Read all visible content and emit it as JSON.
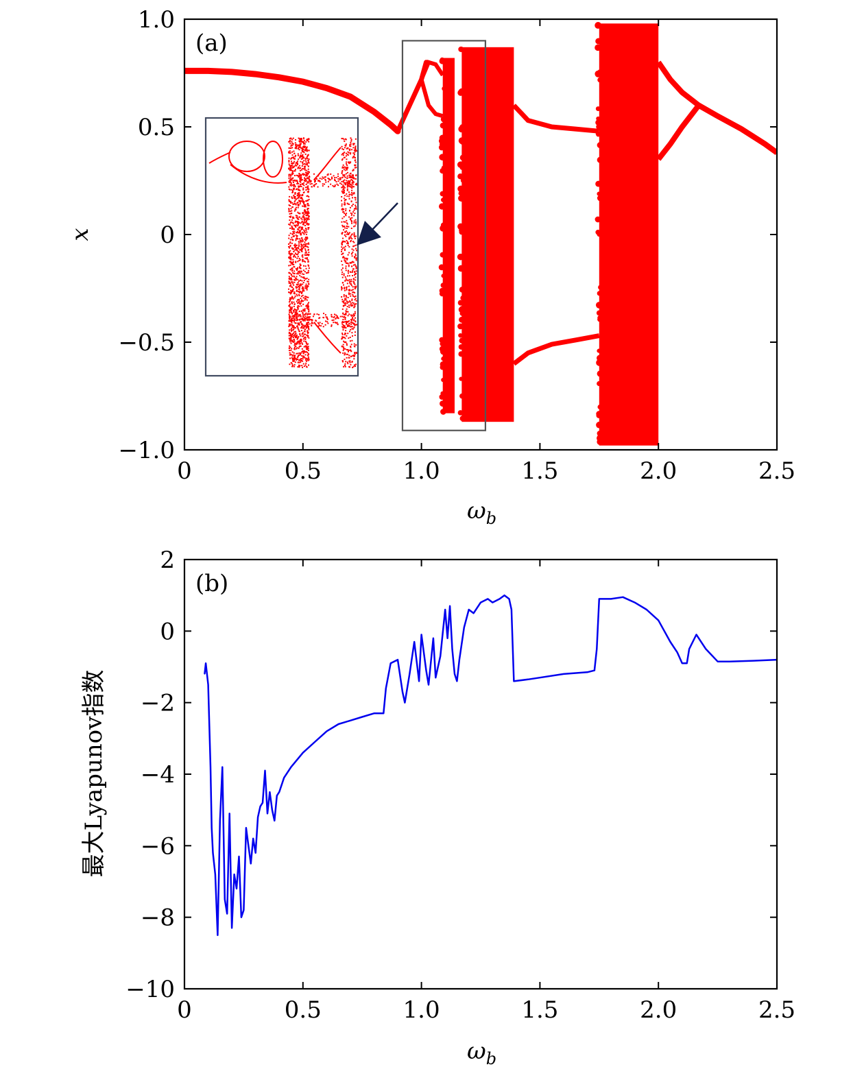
{
  "colors": {
    "bifurcation": "#ff0000",
    "lyapunov": "#0000ee",
    "frame": "#000000",
    "highlight_box": "#555555",
    "inset_box": "#404a60",
    "arrow": "#14204a"
  },
  "chart_data": [
    {
      "type": "scatter",
      "panel_label": "(a)",
      "xlabel_main": "ω",
      "xlabel_sub": "b",
      "ylabel": "x",
      "xlim": [
        0,
        2.5
      ],
      "ylim": [
        -1.0,
        1.0
      ],
      "x_ticks": [
        0,
        0.5,
        1.0,
        1.5,
        2.0,
        2.5
      ],
      "x_tick_labels": [
        "0",
        "0.5",
        "1.0",
        "1.5",
        "2.0",
        "2.5"
      ],
      "y_ticks": [
        1.0,
        0.5,
        0,
        -0.5,
        -1.0
      ],
      "y_tick_labels": [
        "1.0",
        "0.5",
        "0",
        "−0.5",
        "−1.0"
      ],
      "period1_branch": {
        "x": [
          0,
          0.1,
          0.2,
          0.3,
          0.4,
          0.5,
          0.6,
          0.7,
          0.8,
          0.87,
          0.9
        ],
        "y": [
          0.76,
          0.76,
          0.755,
          0.745,
          0.73,
          0.71,
          0.68,
          0.64,
          0.57,
          0.51,
          0.48
        ]
      },
      "branch_rise": {
        "x": [
          0.9,
          0.95,
          1.0,
          1.02
        ],
        "y": [
          0.48,
          0.6,
          0.72,
          0.8
        ]
      },
      "period2_bubble": {
        "x": [
          1.0,
          1.03,
          1.06,
          1.09
        ],
        "upper": [
          0.72,
          0.8,
          0.79,
          0.74
        ],
        "lower": [
          0.72,
          0.6,
          0.56,
          0.55
        ]
      },
      "chaotic_bands": [
        {
          "x_range": [
            1.09,
            1.14
          ],
          "y_range": [
            -0.83,
            0.82
          ]
        },
        {
          "x_range": [
            1.17,
            1.39
          ],
          "y_range": [
            -0.87,
            0.87
          ]
        },
        {
          "x_range": [
            1.75,
            2.0
          ],
          "y_range": [
            -0.98,
            0.98
          ]
        }
      ],
      "period2_window": {
        "x": [
          1.39,
          1.45,
          1.55,
          1.65,
          1.75
        ],
        "upper": [
          0.6,
          0.53,
          0.5,
          0.49,
          0.48
        ],
        "lower": [
          -0.6,
          -0.55,
          -0.51,
          -0.49,
          -0.47
        ]
      },
      "reverse_branch": {
        "x": [
          2.0,
          2.05,
          2.1,
          2.17,
          2.25,
          2.35,
          2.45,
          2.5
        ],
        "upper": [
          0.8,
          0.72,
          0.66,
          0.6,
          0.55,
          0.49,
          0.42,
          0.38
        ],
        "lower": [
          0.35,
          0.42,
          0.5,
          0.6,
          0.55,
          0.49,
          0.42,
          0.38
        ]
      },
      "highlight_box_data": {
        "x_range": [
          0.92,
          1.27
        ],
        "y_range": [
          -0.91,
          0.9
        ]
      }
    },
    {
      "type": "line",
      "panel_label": "(b)",
      "xlabel_main": "ω",
      "xlabel_sub": "b",
      "ylabel": "最大Lyapunov指数",
      "xlim": [
        0,
        2.5
      ],
      "ylim": [
        -10,
        2
      ],
      "x_ticks": [
        0,
        0.5,
        1.0,
        1.5,
        2.0,
        2.5
      ],
      "x_tick_labels": [
        "0",
        "0.5",
        "1.0",
        "1.5",
        "2.0",
        "2.5"
      ],
      "y_ticks": [
        2,
        0,
        -2,
        -4,
        -6,
        -8,
        -10
      ],
      "y_tick_labels": [
        "2",
        "0",
        "−2",
        "−4",
        "−6",
        "−8",
        "−10"
      ],
      "x": [
        0.085,
        0.09,
        0.1,
        0.11,
        0.115,
        0.12,
        0.13,
        0.14,
        0.15,
        0.16,
        0.17,
        0.18,
        0.19,
        0.2,
        0.21,
        0.22,
        0.23,
        0.24,
        0.25,
        0.26,
        0.27,
        0.28,
        0.29,
        0.3,
        0.31,
        0.32,
        0.33,
        0.34,
        0.35,
        0.36,
        0.37,
        0.38,
        0.39,
        0.4,
        0.41,
        0.42,
        0.45,
        0.5,
        0.55,
        0.6,
        0.65,
        0.7,
        0.75,
        0.8,
        0.84,
        0.85,
        0.87,
        0.9,
        0.92,
        0.93,
        0.95,
        0.97,
        0.99,
        1.0,
        1.02,
        1.03,
        1.05,
        1.06,
        1.08,
        1.1,
        1.11,
        1.12,
        1.13,
        1.14,
        1.15,
        1.16,
        1.18,
        1.2,
        1.22,
        1.25,
        1.28,
        1.3,
        1.33,
        1.35,
        1.37,
        1.38,
        1.39,
        1.45,
        1.5,
        1.6,
        1.7,
        1.73,
        1.74,
        1.75,
        1.8,
        1.85,
        1.9,
        1.95,
        2.0,
        2.05,
        2.08,
        2.1,
        2.12,
        2.13,
        2.16,
        2.2,
        2.25,
        2.3,
        2.4,
        2.5
      ],
      "y": [
        -1.2,
        -0.9,
        -1.5,
        -3.8,
        -5.5,
        -6.2,
        -6.8,
        -8.5,
        -5.3,
        -3.8,
        -7.5,
        -7.9,
        -5.1,
        -8.3,
        -6.8,
        -7.2,
        -6.3,
        -8.0,
        -7.8,
        -5.5,
        -6.0,
        -6.5,
        -5.8,
        -6.2,
        -5.2,
        -4.9,
        -4.8,
        -3.9,
        -5.1,
        -4.5,
        -5.0,
        -5.3,
        -4.6,
        -4.5,
        -4.3,
        -4.1,
        -3.8,
        -3.4,
        -3.1,
        -2.8,
        -2.6,
        -2.5,
        -2.4,
        -2.3,
        -2.3,
        -1.6,
        -0.9,
        -0.8,
        -1.7,
        -2.0,
        -1.2,
        -0.3,
        -1.4,
        -0.1,
        -1.1,
        -1.5,
        -0.2,
        -1.3,
        -0.7,
        0.6,
        -0.2,
        0.7,
        -0.5,
        -1.2,
        -1.4,
        -0.8,
        0.1,
        0.6,
        0.5,
        0.8,
        0.9,
        0.8,
        0.9,
        1.0,
        0.9,
        0.6,
        -1.4,
        -1.35,
        -1.3,
        -1.2,
        -1.15,
        -1.1,
        -0.5,
        0.9,
        0.9,
        0.95,
        0.8,
        0.6,
        0.3,
        -0.3,
        -0.6,
        -0.9,
        -0.9,
        -0.5,
        -0.1,
        -0.5,
        -0.85,
        -0.85,
        -0.83,
        -0.8
      ]
    }
  ]
}
